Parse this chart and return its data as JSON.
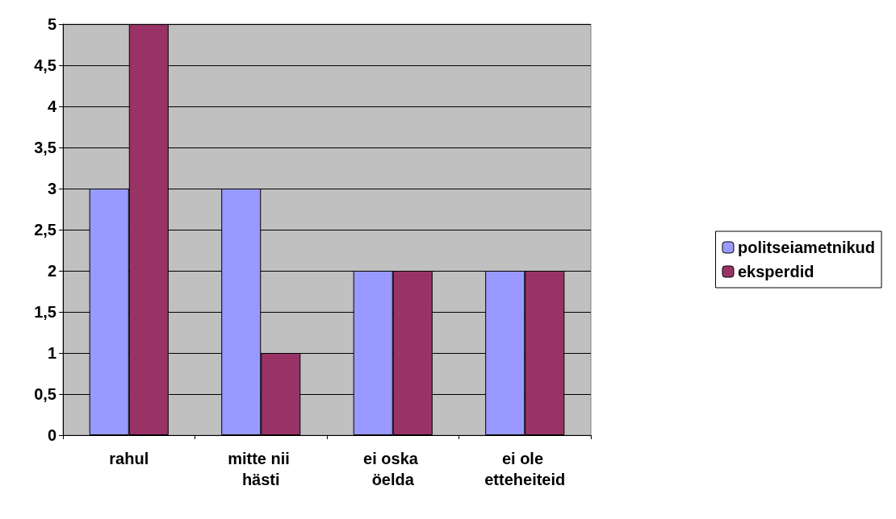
{
  "chart_data": {
    "type": "bar",
    "categories": [
      "rahul",
      "mitte nii hästi",
      "ei oska öelda",
      "ei ole etteheiteid"
    ],
    "series": [
      {
        "name": "politseiametnikud",
        "color": "#9999ff",
        "values": [
          3,
          3,
          2,
          2
        ]
      },
      {
        "name": "eksperdid",
        "color": "#993366",
        "values": [
          5,
          1,
          2,
          2
        ]
      }
    ],
    "ylim": [
      0,
      5
    ],
    "yticks": [
      0,
      {
        "value": 0.5,
        "label": "0,5"
      },
      1,
      {
        "value": 1.5,
        "label": "1,5"
      },
      2,
      {
        "value": 2.5,
        "label": "2,5"
      },
      3,
      {
        "value": 3.5,
        "label": "3,5"
      },
      4,
      {
        "value": 4.5,
        "label": "4,5"
      },
      5
    ],
    "grid": "y",
    "legend": "right"
  }
}
